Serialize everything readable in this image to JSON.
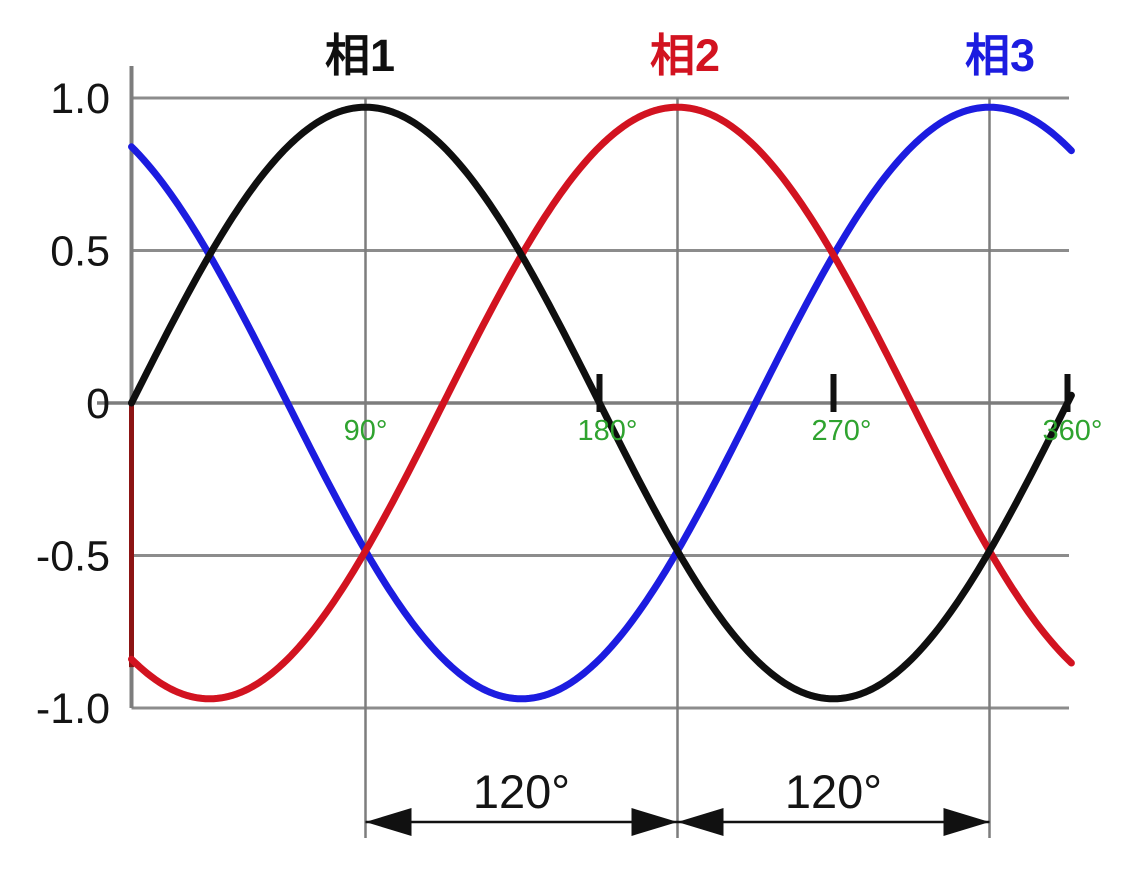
{
  "chart_data": {
    "type": "line",
    "title": "",
    "series": [
      {
        "name": "相1",
        "color": "#0f0f0f",
        "function": "sin",
        "phase_deg": 0,
        "amplitude": 0.97
      },
      {
        "name": "相2",
        "color": "#d21320",
        "function": "sin",
        "phase_deg": -120,
        "amplitude": 0.97
      },
      {
        "name": "相3",
        "color": "#1c1ce0",
        "function": "sin",
        "phase_deg": 120,
        "amplitude": 0.97
      }
    ],
    "x_range_deg": [
      0,
      361.5
    ],
    "ylim": [
      -1,
      1
    ],
    "grid": true,
    "legend_position": "top",
    "y_ticks": [
      1.0,
      0.5,
      0,
      -0.5,
      -1.0
    ],
    "y_tick_labels": [
      "1.0",
      "0.5",
      "0",
      "-0.5",
      "-1.0"
    ],
    "x_ticks": [
      {
        "deg": 90,
        "label": "90°",
        "tick": false,
        "gridline": true
      },
      {
        "deg": 180,
        "label": "180°",
        "tick": true,
        "gridline": false
      },
      {
        "deg": 270,
        "label": "270°",
        "tick": true,
        "gridline": false
      },
      {
        "deg": 360,
        "label": "360°",
        "tick": true,
        "gridline": false
      }
    ],
    "x_gridlines_deg": [
      90,
      210,
      330
    ],
    "tick_label_color": "#2fa32f",
    "grid_color": "#8c8c8c",
    "axis_color": "#7d7d7d",
    "annotations": [
      {
        "label": "120°",
        "from_deg": 90,
        "to_deg": 210
      },
      {
        "label": "120°",
        "from_deg": 210,
        "to_deg": 330
      }
    ],
    "left_edge_segment": {
      "x_deg": 0,
      "value_from": 0,
      "value_to": -0.866,
      "color": "#8c1414"
    }
  }
}
